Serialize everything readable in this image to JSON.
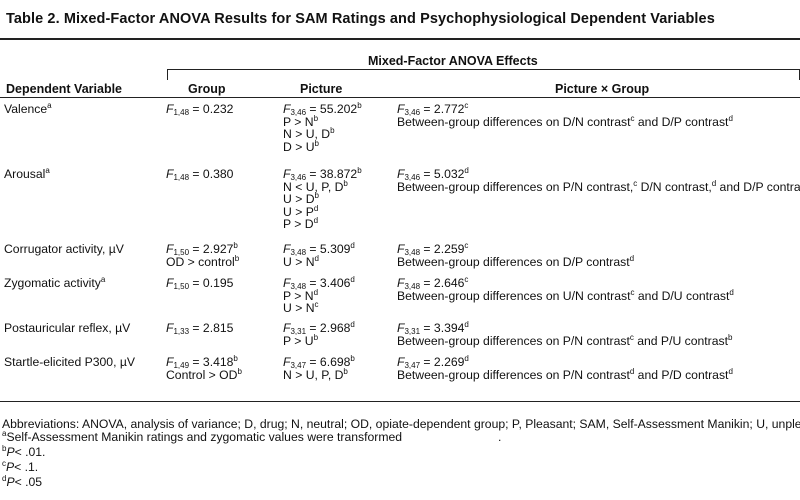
{
  "title": "Table 2. Mixed-Factor ANOVA Results for SAM Ratings and Psychophysiological Dependent Variables",
  "header": {
    "span_label": "Mixed-Factor ANOVA Effects",
    "dependent_variable": "Dependent Variable",
    "group": "Group",
    "picture": "Picture",
    "interaction": "Picture × Group"
  },
  "rows": [
    {
      "dv": "Valence",
      "dv_note": "a",
      "group": [
        {
          "F": "F",
          "df": "1,48",
          "val": " = 0.232",
          "sup": ""
        }
      ],
      "picture": [
        {
          "F": "F",
          "df": "3,46",
          "val": " = 55.202",
          "sup": "b"
        },
        {
          "text": "P > N",
          "sup": "b"
        },
        {
          "text": "N > U, D",
          "sup": "b"
        },
        {
          "text": "D > U",
          "sup": "b"
        }
      ],
      "interaction": [
        {
          "F": "F",
          "df": "3,46",
          "val": " = 2.772",
          "sup": "c"
        },
        {
          "text": "Between-group differences on D/N contrast",
          "sup": "c",
          "text2": " and D/P contrast",
          "sup2": "d"
        }
      ]
    },
    {
      "dv": "Arousal",
      "dv_note": "a",
      "group": [
        {
          "F": "F",
          "df": "1,48",
          "val": " = 0.380",
          "sup": ""
        }
      ],
      "picture": [
        {
          "F": "F",
          "df": "3,46",
          "val": " = 38.872",
          "sup": "b"
        },
        {
          "text": "N < U, P, D",
          "sup": "b"
        },
        {
          "text": "U > D",
          "sup": "b"
        },
        {
          "text": "U > P",
          "sup": "d"
        },
        {
          "text": "P > D",
          "sup": "d"
        }
      ],
      "interaction": [
        {
          "F": "F",
          "df": "3,46",
          "val": " = 5.032",
          "sup": "d"
        },
        {
          "text": "Between-group differences on P/N contrast,",
          "sup": "c",
          "text2": " D/N contrast,",
          "sup2": "d",
          "text3": " and D/P contrast",
          "sup3": "b"
        }
      ]
    },
    {
      "dv": "Corrugator activity, µV",
      "dv_note": "",
      "group": [
        {
          "F": "F",
          "df": "1,50",
          "val": " = 2.927",
          "sup": "b"
        },
        {
          "text": "OD > control",
          "sup": "b"
        }
      ],
      "picture": [
        {
          "F": "F",
          "df": "3,48",
          "val": " = 5.309",
          "sup": "d"
        },
        {
          "text": "U > N",
          "sup": "d"
        }
      ],
      "interaction": [
        {
          "F": "F",
          "df": "3,48",
          "val": " = 2.259",
          "sup": "c"
        },
        {
          "text": "Between-group differences on D/P contrast",
          "sup": "d"
        }
      ]
    },
    {
      "dv": "Zygomatic activity",
      "dv_note": "a",
      "group": [
        {
          "F": "F",
          "df": "1,50",
          "val": " = 0.195",
          "sup": ""
        }
      ],
      "picture": [
        {
          "F": "F",
          "df": "3,48",
          "val": " = 3.406",
          "sup": "d"
        },
        {
          "text": "P > N",
          "sup": "d"
        },
        {
          "text": "U > N",
          "sup": "c"
        }
      ],
      "interaction": [
        {
          "F": "F",
          "df": "3,48",
          "val": " = 2.646",
          "sup": "c"
        },
        {
          "text": "Between-group differences on U/N contrast",
          "sup": "c",
          "text2": " and D/U contrast",
          "sup2": "d"
        }
      ]
    },
    {
      "dv": "Postauricular reflex, µV",
      "dv_note": "",
      "group": [
        {
          "F": "F",
          "df": "1,33",
          "val": " = 2.815",
          "sup": ""
        }
      ],
      "picture": [
        {
          "F": "F",
          "df": "3,31",
          "val": " = 2.968",
          "sup": "d"
        },
        {
          "text": "P > U",
          "sup": "b"
        }
      ],
      "interaction": [
        {
          "F": "F",
          "df": "3,31",
          "val": " = 3.394",
          "sup": "d"
        },
        {
          "text": "Between-group differences on P/N contrast",
          "sup": "c",
          "text2": " and P/U contrast",
          "sup2": "b"
        }
      ]
    },
    {
      "dv": "Startle-elicited P300, µV",
      "dv_note": "",
      "group": [
        {
          "F": "F",
          "df": "1,49",
          "val": " = 3.418",
          "sup": "b"
        },
        {
          "text": "Control > OD",
          "sup": "b"
        }
      ],
      "picture": [
        {
          "F": "F",
          "df": "3,47",
          "val": " = 6.698",
          "sup": "b"
        },
        {
          "text": "N > U, P, D",
          "sup": "b"
        }
      ],
      "interaction": [
        {
          "F": "F",
          "df": "3,47",
          "val": " = 2.269",
          "sup": "d"
        },
        {
          "text": "Between-group differences on P/N contrast",
          "sup": "d",
          "text2": " and P/D contrast",
          "sup2": "d"
        }
      ]
    }
  ],
  "footnotes": {
    "abbreviations": "Abbreviations: ANOVA, analysis of variance; D, drug; N, neutral; OD, opiate-dependent group; P, Pleasant; SAM, Self-Assessment Manikin; U, unpleasant.",
    "a_mark": "a",
    "a_text": "Self-Assessment Manikin ratings and zygomatic values were transformed",
    "a_trail": ".",
    "b_mark": "b",
    "b_p": "P",
    "b_text": "< .01.",
    "c_mark": "c",
    "c_p": "P",
    "c_text": "< .1.",
    "d_mark": "d",
    "d_p": "P",
    "d_text": "< .05"
  }
}
